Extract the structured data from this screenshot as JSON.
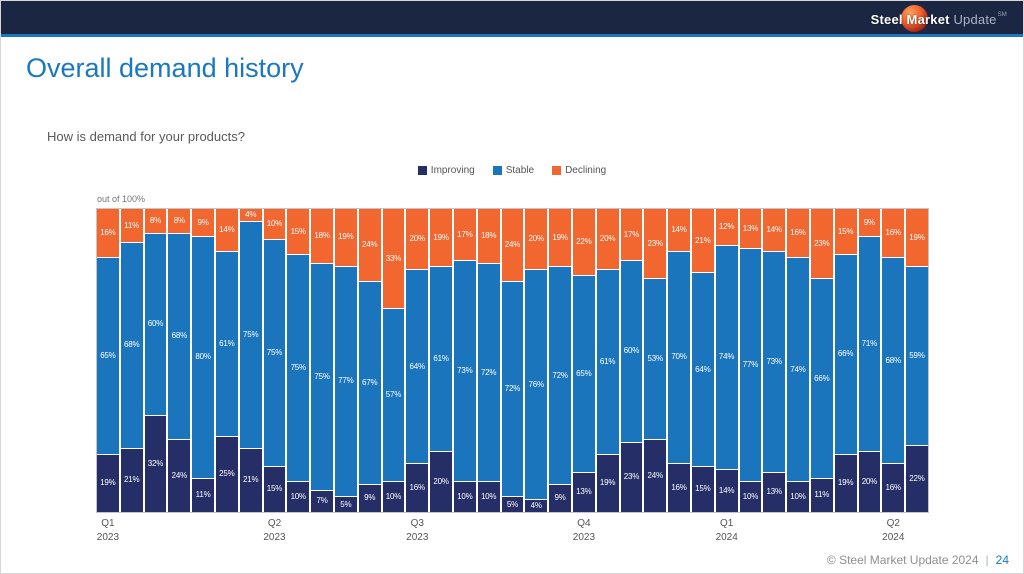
{
  "header": {
    "logo_steel": "Steel Market",
    "logo_update": " Update",
    "logo_sm": "SM"
  },
  "slide": {
    "title": "Overall demand history",
    "question": "How is demand for your products?",
    "axis_note": "out of 100%"
  },
  "legend": [
    {
      "label": "Improving",
      "color": "#252e66"
    },
    {
      "label": "Stable",
      "color": "#1b75bc"
    },
    {
      "label": "Declining",
      "color": "#f2662f"
    }
  ],
  "chart_data": {
    "type": "bar",
    "stacked": true,
    "units": "percent",
    "ylim": [
      0,
      100
    ],
    "series_order_bottom_to_top": [
      "improving",
      "stable",
      "declining"
    ],
    "colors": {
      "improving": "#252e66",
      "stable": "#1b75bc",
      "declining": "#f2662f"
    },
    "bars": [
      {
        "improving": 19,
        "stable": 65,
        "declining": 16
      },
      {
        "improving": 21,
        "stable": 68,
        "declining": 11
      },
      {
        "improving": 32,
        "stable": 60,
        "declining": 8
      },
      {
        "improving": 24,
        "stable": 68,
        "declining": 8
      },
      {
        "improving": 11,
        "stable": 80,
        "declining": 9
      },
      {
        "improving": 25,
        "stable": 61,
        "declining": 14
      },
      {
        "improving": 21,
        "stable": 75,
        "declining": 4
      },
      {
        "improving": 15,
        "stable": 75,
        "declining": 10
      },
      {
        "improving": 10,
        "stable": 75,
        "declining": 15
      },
      {
        "improving": 7,
        "stable": 75,
        "declining": 18
      },
      {
        "improving": 5,
        "stable": 77,
        "declining": 19
      },
      {
        "improving": 9,
        "stable": 67,
        "declining": 24
      },
      {
        "improving": 10,
        "stable": 57,
        "declining": 33
      },
      {
        "improving": 16,
        "stable": 64,
        "declining": 20
      },
      {
        "improving": 20,
        "stable": 61,
        "declining": 19
      },
      {
        "improving": 10,
        "stable": 73,
        "declining": 17
      },
      {
        "improving": 10,
        "stable": 72,
        "declining": 18
      },
      {
        "improving": 5,
        "stable": 72,
        "declining": 24
      },
      {
        "improving": 4,
        "stable": 76,
        "declining": 20
      },
      {
        "improving": 9,
        "stable": 72,
        "declining": 19
      },
      {
        "improving": 13,
        "stable": 65,
        "declining": 22
      },
      {
        "improving": 19,
        "stable": 61,
        "declining": 20
      },
      {
        "improving": 23,
        "stable": 60,
        "declining": 17
      },
      {
        "improving": 24,
        "stable": 53,
        "declining": 23
      },
      {
        "improving": 16,
        "stable": 70,
        "declining": 14
      },
      {
        "improving": 15,
        "stable": 64,
        "declining": 21
      },
      {
        "improving": 14,
        "stable": 74,
        "declining": 12
      },
      {
        "improving": 10,
        "stable": 77,
        "declining": 13
      },
      {
        "improving": 13,
        "stable": 73,
        "declining": 14
      },
      {
        "improving": 10,
        "stable": 74,
        "declining": 16
      },
      {
        "improving": 11,
        "stable": 66,
        "declining": 23
      },
      {
        "improving": 19,
        "stable": 66,
        "declining": 15
      },
      {
        "improving": 20,
        "stable": 71,
        "declining": 9
      },
      {
        "improving": 16,
        "stable": 68,
        "declining": 16
      },
      {
        "improving": 22,
        "stable": 59,
        "declining": 19
      }
    ],
    "quarter_labels": [
      {
        "quarter": "Q1",
        "year": "2023",
        "bar_index": 0
      },
      {
        "quarter": "Q2",
        "year": "2023",
        "bar_index": 7
      },
      {
        "quarter": "Q3",
        "year": "2023",
        "bar_index": 13
      },
      {
        "quarter": "Q4",
        "year": "2023",
        "bar_index": 20
      },
      {
        "quarter": "Q1",
        "year": "2024",
        "bar_index": 26
      },
      {
        "quarter": "Q2",
        "year": "2024",
        "bar_index": 33
      }
    ],
    "title": "Overall demand history",
    "subtitle": "How is demand for your products?",
    "legend_position": "top-center"
  },
  "footer": {
    "copyright": "© Steel Market Update 2024",
    "separator": "|",
    "page_number": "24"
  }
}
